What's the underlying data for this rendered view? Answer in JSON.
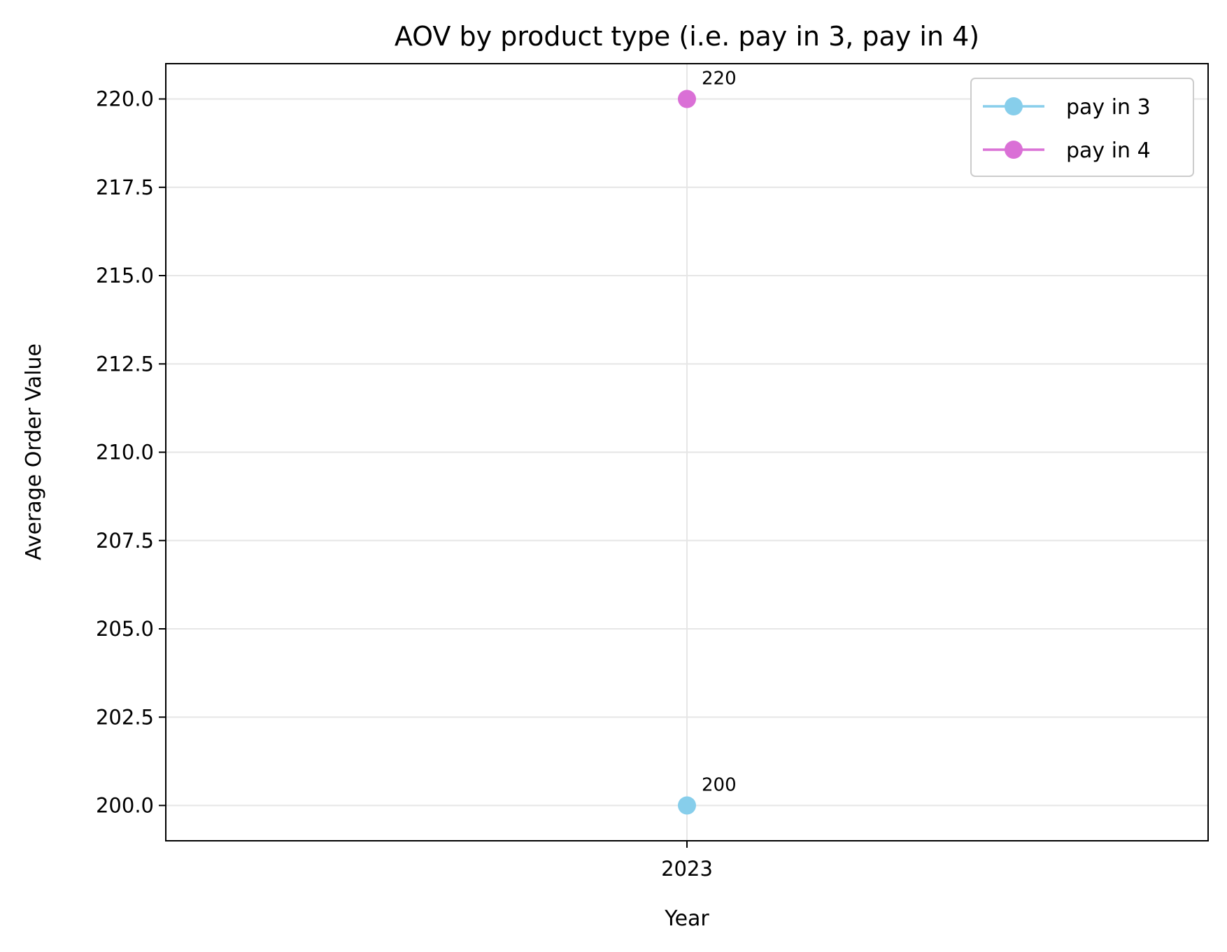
{
  "chart_data": {
    "type": "line",
    "title": "AOV by product type (i.e. pay in 3, pay in 4)",
    "xlabel": "Year",
    "ylabel": "Average Order Value",
    "categories": [
      "2023"
    ],
    "xticks": [
      "2023"
    ],
    "yticks": [
      "200.0",
      "202.5",
      "205.0",
      "207.5",
      "210.0",
      "212.5",
      "215.0",
      "217.5",
      "220.0"
    ],
    "ylim": [
      199,
      221
    ],
    "grid": true,
    "legend_position": "top-right",
    "series": [
      {
        "name": "pay in 3",
        "values": [
          200
        ],
        "labels": [
          "200"
        ],
        "color": "#87CEEB",
        "marker": "circle"
      },
      {
        "name": "pay in 4",
        "values": [
          220
        ],
        "labels": [
          "220"
        ],
        "color": "#DA70D6",
        "marker": "circle"
      }
    ]
  }
}
